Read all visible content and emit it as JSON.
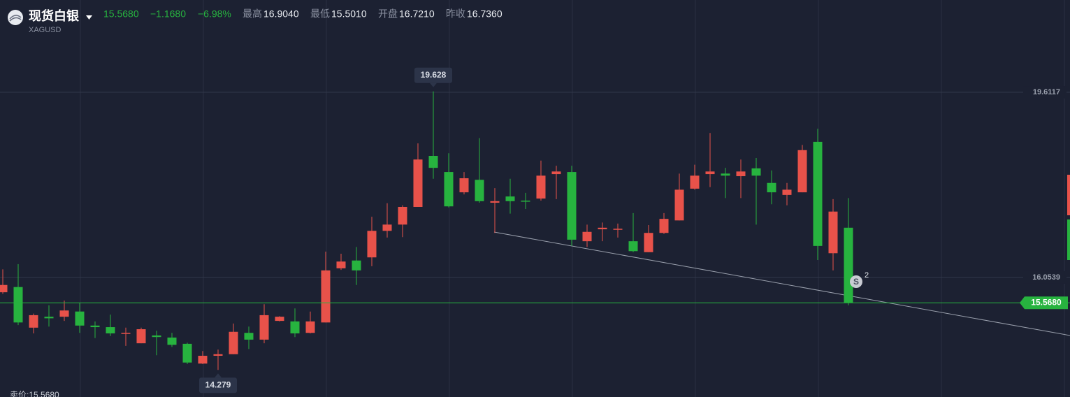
{
  "header": {
    "title": "现货白银",
    "symbol": "XAGUSD",
    "price": "15.5680",
    "change": "−1.1680",
    "change_pct": "−6.98%",
    "stats": [
      {
        "label": "最高",
        "value": "16.9040"
      },
      {
        "label": "最低",
        "value": "15.5010"
      },
      {
        "label": "开盘",
        "value": "16.7210"
      },
      {
        "label": "昨收",
        "value": "16.7360"
      }
    ],
    "footer": "卖价:15.5680"
  },
  "chart_data": {
    "type": "candlestick",
    "up_color": "#e8524a",
    "down_color": "#27b33f",
    "open": [
      15.77,
      15.87,
      15.09,
      15.3,
      15.3,
      15.4,
      15.13,
      15.1,
      14.97,
      14.79,
      14.94,
      14.9,
      14.78,
      14.4,
      14.55,
      14.58,
      14.99,
      14.86,
      15.22,
      15.21,
      14.99,
      15.19,
      16.23,
      16.38,
      16.44,
      16.95,
      17.07,
      17.41,
      18.39,
      18.08,
      17.69,
      17.93,
      17.49,
      17.61,
      17.53,
      17.57,
      18.04,
      18.08,
      16.75,
      16.98,
      16.97,
      16.75,
      16.54,
      16.91,
      17.15,
      17.76,
      18.04,
      18.05,
      18.0,
      18.15,
      17.87,
      17.64,
      17.69,
      18.66,
      16.52,
      17.01
    ],
    "high": [
      16.21,
      16.31,
      15.36,
      15.52,
      15.61,
      15.57,
      15.21,
      15.34,
      15.09,
      15.09,
      15.03,
      14.99,
      14.8,
      14.64,
      14.67,
      15.17,
      15.11,
      15.54,
      15.31,
      15.46,
      15.4,
      16.55,
      16.51,
      16.64,
      17.22,
      17.48,
      17.44,
      18.63,
      19.628,
      18.44,
      18.08,
      18.73,
      17.77,
      17.95,
      17.68,
      18.3,
      18.2,
      18.2,
      17.07,
      17.11,
      17.09,
      17.29,
      17.06,
      17.29,
      18.05,
      18.22,
      18.83,
      18.16,
      18.32,
      18.35,
      18.11,
      17.87,
      18.6,
      18.91,
      17.56,
      17.58
    ],
    "low": [
      15.74,
      15.14,
      14.98,
      15.11,
      15.22,
      14.99,
      14.89,
      14.93,
      14.74,
      14.79,
      14.56,
      14.72,
      14.39,
      14.39,
      14.279,
      14.58,
      14.68,
      14.79,
      15.21,
      14.91,
      14.98,
      15.19,
      16.2,
      15.91,
      16.27,
      16.82,
      16.83,
      17.41,
      17.95,
      17.4,
      17.65,
      17.49,
      16.91,
      17.28,
      17.37,
      17.53,
      17.56,
      16.66,
      16.64,
      16.75,
      16.82,
      16.54,
      16.54,
      16.89,
      17.15,
      17.74,
      17.79,
      17.58,
      17.58,
      17.07,
      17.46,
      17.44,
      17.69,
      16.39,
      16.19,
      15.52
    ],
    "close": [
      15.91,
      15.19,
      15.33,
      15.27,
      15.42,
      15.13,
      15.1,
      14.98,
      14.99,
      15.06,
      14.91,
      14.76,
      14.42,
      14.55,
      14.58,
      15.01,
      14.86,
      15.33,
      15.3,
      14.98,
      15.21,
      16.19,
      16.36,
      16.19,
      16.95,
      17.07,
      17.41,
      18.32,
      18.16,
      17.42,
      17.96,
      17.52,
      17.52,
      17.52,
      17.52,
      18.01,
      18.09,
      16.78,
      16.93,
      17.01,
      16.99,
      16.56,
      16.91,
      17.18,
      17.74,
      18.01,
      18.09,
      18.01,
      18.09,
      18.01,
      17.69,
      17.74,
      18.5,
      16.66,
      17.32,
      15.568
    ],
    "ylim": [
      13.758,
      21.384
    ],
    "yticks": [
      19.6117,
      16.0539
    ],
    "price_line": {
      "value": 15.568,
      "label": "15.5680"
    },
    "marker": {
      "text": "S",
      "count": "2"
    }
  }
}
